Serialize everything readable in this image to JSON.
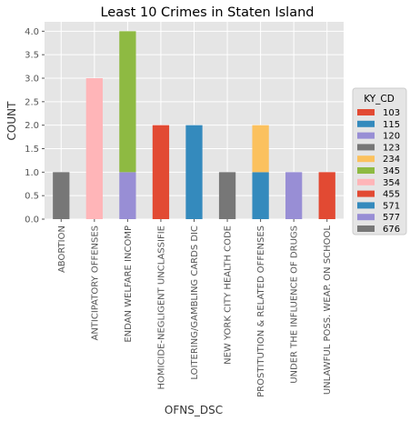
{
  "chart_data": {
    "type": "bar",
    "stacked": true,
    "title": "Least 10 Crimes in Staten Island",
    "xlabel": "OFNS_DSC",
    "ylabel": "COUNT",
    "ylim": [
      0,
      4.2
    ],
    "yticks": [
      "0.0",
      "0.5",
      "1.0",
      "1.5",
      "2.0",
      "2.5",
      "3.0",
      "3.5",
      "4.0"
    ],
    "ytick_values": [
      0,
      0.5,
      1,
      1.5,
      2,
      2.5,
      3,
      3.5,
      4
    ],
    "grid": true,
    "legend_position": "right",
    "legend_title": "KY_CD",
    "categories": [
      "ABORTION",
      "ANTICIPATORY OFFENSES",
      "ENDAN WELFARE INCOMP",
      "HOMICIDE-NEGLIGENT UNCLASSIFIE",
      "LOITERING/GAMBLING CARDS  DIC",
      "NEW YORK CITY HEALTH CODE",
      "PROSTITUTION & RELATED OFFENSES",
      "UNDER THE INFLUENCE OF DRUGS",
      "UNLAWFUL POSS. WEAP. ON SCHOOL"
    ],
    "series": [
      {
        "name": "103",
        "color": "#e24a33",
        "values": [
          0,
          0,
          0,
          0,
          0,
          0,
          0,
          0,
          1
        ]
      },
      {
        "name": "115",
        "color": "#348abd",
        "values": [
          0,
          0,
          0,
          0,
          0,
          0,
          1,
          0,
          0
        ]
      },
      {
        "name": "120",
        "color": "#988ed5",
        "values": [
          0,
          0,
          1,
          0,
          0,
          0,
          0,
          0,
          0
        ]
      },
      {
        "name": "123",
        "color": "#777777",
        "values": [
          0,
          0,
          0,
          0,
          0,
          1,
          0,
          0,
          0
        ]
      },
      {
        "name": "234",
        "color": "#fbc15e",
        "values": [
          0,
          0,
          0,
          0,
          0,
          0,
          1,
          0,
          0
        ]
      },
      {
        "name": "345",
        "color": "#8eba42",
        "values": [
          0,
          0,
          3,
          0,
          0,
          0,
          0,
          0,
          0
        ]
      },
      {
        "name": "354",
        "color": "#ffb5b8",
        "values": [
          0,
          3,
          0,
          0,
          0,
          0,
          0,
          0,
          0
        ]
      },
      {
        "name": "455",
        "color": "#e24a33",
        "values": [
          0,
          0,
          0,
          2,
          0,
          0,
          0,
          0,
          0
        ]
      },
      {
        "name": "571",
        "color": "#348abd",
        "values": [
          0,
          0,
          0,
          0,
          2,
          0,
          0,
          0,
          0
        ]
      },
      {
        "name": "577",
        "color": "#988ed5",
        "values": [
          0,
          0,
          0,
          0,
          0,
          0,
          0,
          1,
          0
        ]
      },
      {
        "name": "676",
        "color": "#777777",
        "values": [
          1,
          0,
          0,
          0,
          0,
          0,
          0,
          0,
          0
        ]
      }
    ]
  }
}
